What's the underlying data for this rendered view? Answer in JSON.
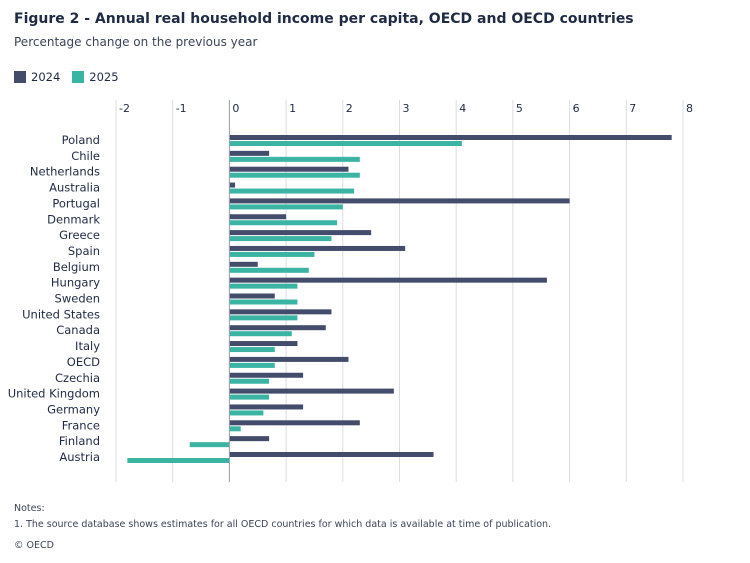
{
  "figure": {
    "title": "Figure 2 - Annual real household income per capita, OECD and OECD countries",
    "subtitle": "Percentage change on the previous year"
  },
  "notes": {
    "heading": "Notes:",
    "line1": "1. The source database shows estimates for all OECD countries for which data is available at time of publication.",
    "copyright": "© OECD"
  },
  "colors": {
    "series_2024": "#434c6b",
    "series_2025": "#3cb4a4",
    "grid": "#d9dde3",
    "text": "#1f2a44"
  },
  "chart_data": {
    "type": "bar",
    "orientation": "horizontal",
    "title": "Figure 2 - Annual real household income per capita, OECD and OECD countries",
    "subtitle": "Percentage change on the previous year",
    "categories": [
      "Poland",
      "Chile",
      "Netherlands",
      "Australia",
      "Portugal",
      "Denmark",
      "Greece",
      "Spain",
      "Belgium",
      "Hungary",
      "Sweden",
      "United States",
      "Canada",
      "Italy",
      "OECD",
      "Czechia",
      "United Kingdom",
      "Germany",
      "France",
      "Finland",
      "Austria"
    ],
    "series": [
      {
        "name": "2024",
        "values": [
          7.8,
          0.7,
          2.1,
          0.1,
          6.0,
          1.0,
          2.5,
          3.1,
          0.5,
          5.6,
          0.8,
          1.8,
          1.7,
          1.2,
          2.1,
          1.3,
          2.9,
          1.3,
          2.3,
          0.7,
          3.6
        ]
      },
      {
        "name": "2025",
        "values": [
          4.1,
          2.3,
          2.3,
          2.2,
          2.0,
          1.9,
          1.8,
          1.5,
          1.4,
          1.2,
          1.2,
          1.2,
          1.1,
          0.8,
          0.8,
          0.7,
          0.7,
          0.6,
          0.2,
          -0.7,
          -1.8
        ]
      }
    ],
    "xlim": [
      -2,
      8
    ],
    "xticks": [
      "-2",
      "-1",
      "0",
      "1",
      "2",
      "3",
      "4",
      "5",
      "6",
      "7",
      "8"
    ],
    "xtick_values": [
      -2,
      -1,
      0,
      1,
      2,
      3,
      4,
      5,
      6,
      7,
      8
    ],
    "grid": true,
    "legend_position": "top-left"
  }
}
